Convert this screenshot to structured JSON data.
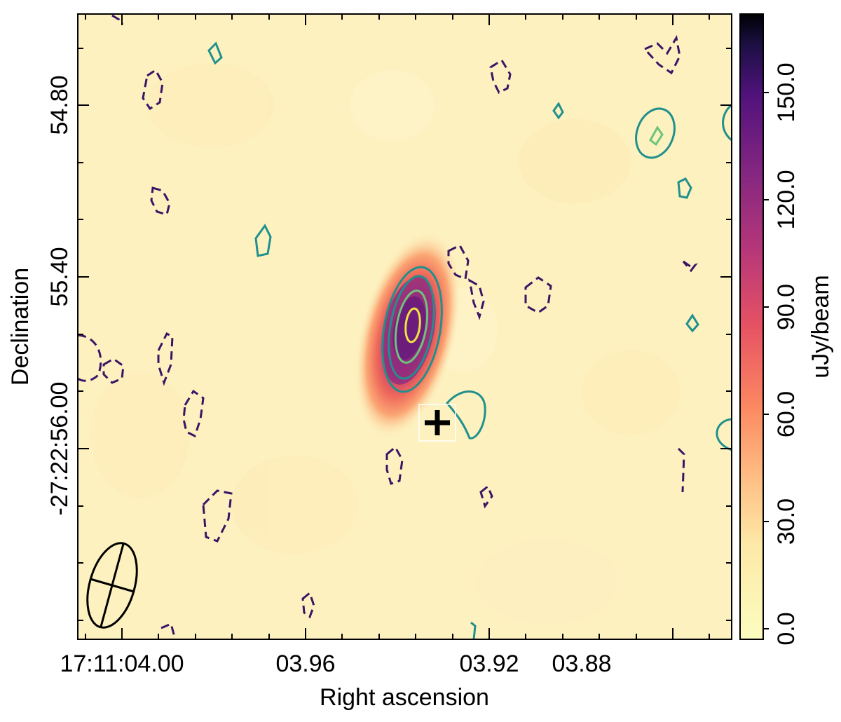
{
  "chart_data": {
    "type": "heatmap",
    "title": "",
    "xlabel": "Right ascension",
    "ylabel": "Declination",
    "x_tick_labels": [
      "17:11:04.00",
      "03.96",
      "03.92",
      "03.88"
    ],
    "y_tick_labels": [
      "54.80",
      "55.40",
      "-27:22:56.00"
    ],
    "x_ticks_seconds": [
      4.0,
      3.96,
      3.92,
      3.88
    ],
    "y_ticks_arcsec": [
      54.8,
      55.4,
      56.0
    ],
    "colorbar": {
      "label": "uJy/beam",
      "ticks": [
        0.0,
        30.0,
        60.0,
        90.0,
        120.0,
        150.0
      ],
      "tick_labels": [
        "0.0",
        "30.0",
        "60.0",
        "90.0",
        "120.0",
        "150.0"
      ],
      "range": [
        -3,
        172
      ],
      "colormap": "magma_r"
    },
    "source": {
      "ra_s": 3.9245,
      "dec_arcsec": 55.59,
      "peak": 150
    },
    "marker": {
      "type": "plus",
      "ra_s": 3.9185,
      "dec_arcsec": 56.09
    },
    "beam_ellipse": {
      "ra_s": 4.0071,
      "dec_arcsec": 56.86,
      "label": "beam"
    }
  },
  "colors": {
    "contour_positive_outer": "#20908c",
    "contour_positive_mid": "#6cc47a",
    "contour_positive_inner": "#f0e442",
    "contour_negative": "#3b1466",
    "marker": "#000000",
    "background": "#fdf4c2"
  }
}
